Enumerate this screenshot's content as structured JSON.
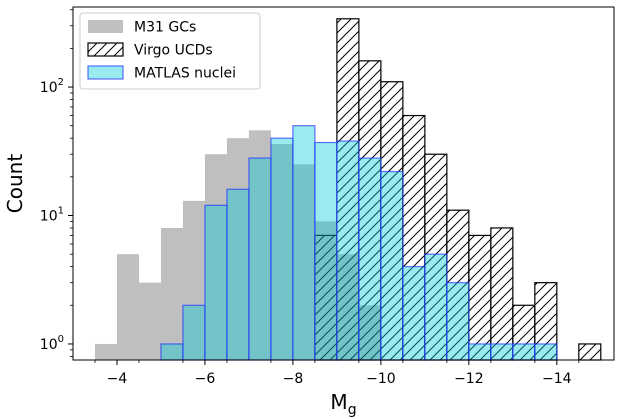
{
  "chart_data": {
    "type": "bar",
    "xlabel": "M",
    "xlabel_sub": "g",
    "ylabel": "Count",
    "x_tick_labels": [
      "−4",
      "−6",
      "−8",
      "−10",
      "−12",
      "−14"
    ],
    "x_ticks": [
      -4,
      -6,
      -8,
      -10,
      -12,
      -14
    ],
    "xlim": [
      -3.0,
      -15.3
    ],
    "x_reversed": true,
    "y_scale": "log",
    "ylim": [
      0.75,
      420
    ],
    "y_ticks": [
      1,
      10,
      100
    ],
    "y_tick_labels": [
      {
        "base": "10",
        "exp": "0"
      },
      {
        "base": "10",
        "exp": "1"
      },
      {
        "base": "10",
        "exp": "2"
      }
    ],
    "grid": false,
    "legend_placement": "top-left",
    "series": [
      {
        "name": "M31 GCs",
        "style": "filled",
        "fill": "#a9a9a9",
        "opacity": 0.75,
        "stroke": "none",
        "bin_width": 0.5,
        "bins": [
          {
            "x": -3.75,
            "value": 1
          },
          {
            "x": -4.25,
            "value": 5
          },
          {
            "x": -4.75,
            "value": 3
          },
          {
            "x": -5.25,
            "value": 8
          },
          {
            "x": -5.75,
            "value": 13
          },
          {
            "x": -6.25,
            "value": 30
          },
          {
            "x": -6.75,
            "value": 40
          },
          {
            "x": -7.25,
            "value": 46
          },
          {
            "x": -7.75,
            "value": 36
          },
          {
            "x": -8.25,
            "value": 25
          },
          {
            "x": -8.75,
            "value": 9
          },
          {
            "x": -9.25,
            "value": 5
          },
          {
            "x": -9.75,
            "value": 2
          }
        ]
      },
      {
        "name": "Virgo UCDs",
        "style": "hatched",
        "fill": "none",
        "stroke": "#000000",
        "bin_width": 0.5,
        "bins": [
          {
            "x": -8.75,
            "value": 7
          },
          {
            "x": -9.25,
            "value": 340
          },
          {
            "x": -9.75,
            "value": 160
          },
          {
            "x": -10.25,
            "value": 110
          },
          {
            "x": -10.75,
            "value": 60
          },
          {
            "x": -11.25,
            "value": 30
          },
          {
            "x": -11.75,
            "value": 11
          },
          {
            "x": -12.25,
            "value": 7
          },
          {
            "x": -12.75,
            "value": 8
          },
          {
            "x": -13.25,
            "value": 2
          },
          {
            "x": -13.75,
            "value": 3
          },
          {
            "x": -14.75,
            "value": 1
          }
        ]
      },
      {
        "name": "MATLAS nuclei",
        "style": "filled",
        "fill": "#00cdd6",
        "opacity": 0.4,
        "stroke": "#2233ff",
        "bin_width": 0.5,
        "bins": [
          {
            "x": -5.25,
            "value": 1
          },
          {
            "x": -5.75,
            "value": 2
          },
          {
            "x": -6.25,
            "value": 12
          },
          {
            "x": -6.75,
            "value": 16
          },
          {
            "x": -7.25,
            "value": 28
          },
          {
            "x": -7.75,
            "value": 40
          },
          {
            "x": -8.25,
            "value": 50
          },
          {
            "x": -8.75,
            "value": 37
          },
          {
            "x": -9.25,
            "value": 38
          },
          {
            "x": -9.75,
            "value": 28
          },
          {
            "x": -10.25,
            "value": 22
          },
          {
            "x": -10.75,
            "value": 4
          },
          {
            "x": -11.25,
            "value": 5
          },
          {
            "x": -11.75,
            "value": 3
          },
          {
            "x": -12.25,
            "value": 1
          },
          {
            "x": -12.75,
            "value": 1
          },
          {
            "x": -13.25,
            "value": 1
          },
          {
            "x": -13.75,
            "value": 1
          }
        ]
      }
    ]
  }
}
